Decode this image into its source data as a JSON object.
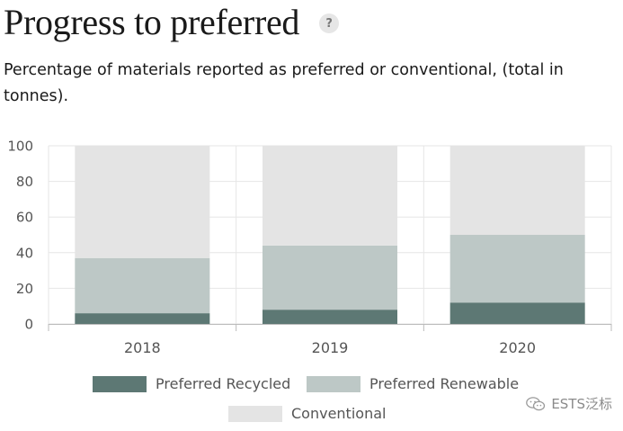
{
  "header": {
    "title": "Progress to preferred",
    "help_icon": "?",
    "subtitle": "Percentage of materials reported as preferred or conventional, (total in tonnes)."
  },
  "chart_data": {
    "type": "bar",
    "stacked": true,
    "categories": [
      "2018",
      "2019",
      "2020"
    ],
    "series": [
      {
        "name": "Preferred Recycled",
        "values": [
          6,
          8,
          12
        ],
        "color": "#5d7874"
      },
      {
        "name": "Preferred Renewable",
        "values": [
          31,
          36,
          38
        ],
        "color": "#bdc8c6"
      },
      {
        "name": "Conventional",
        "values": [
          63,
          56,
          50
        ],
        "color": "#e4e4e4"
      }
    ],
    "y_ticks": [
      "0",
      "20",
      "40",
      "60",
      "80",
      "100"
    ],
    "ylim": [
      0,
      100
    ],
    "grid": true,
    "legend_position": "bottom"
  },
  "watermark": {
    "icon": "wechat-icon",
    "text": "ESTS泛标"
  }
}
